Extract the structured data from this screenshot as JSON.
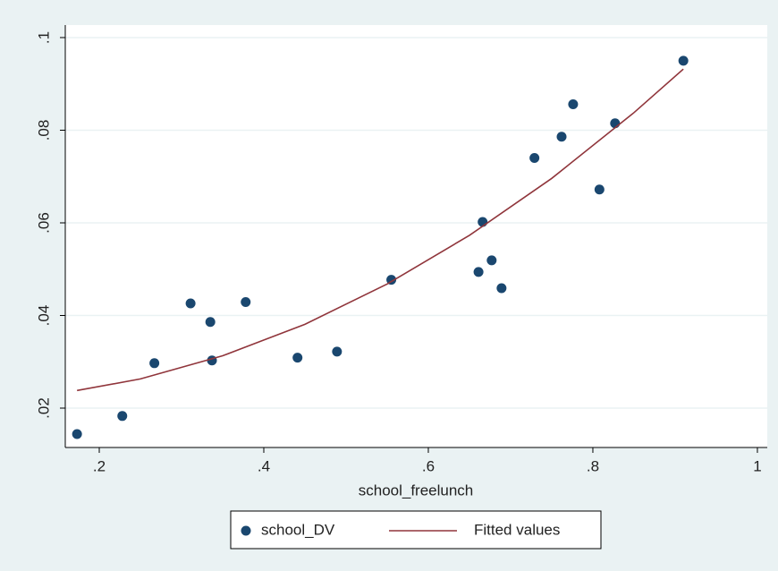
{
  "chart_data": {
    "type": "scatter",
    "x_label": "school_freelunch",
    "xlim": [
      0.1587,
      1.012
    ],
    "ylim": [
      0.0115,
      0.1027
    ],
    "xticks": [
      {
        "value": 0.2,
        "label": ".2"
      },
      {
        "value": 0.4,
        "label": ".4"
      },
      {
        "value": 0.6,
        "label": ".6"
      },
      {
        "value": 0.8,
        "label": ".8"
      },
      1
    ],
    "yticks": [
      {
        "value": 0.02,
        "label": ".02"
      },
      {
        "value": 0.04,
        "label": ".04"
      },
      {
        "value": 0.06,
        "label": ".06"
      },
      {
        "value": 0.08,
        "label": ".08"
      },
      {
        "value": 0.1,
        "label": ".1"
      }
    ],
    "grid": true,
    "legend": "bottom",
    "series": [
      {
        "name": "school_DV",
        "color": "#1a476f",
        "mode": "markers",
        "x": [
          0.173,
          0.228,
          0.267,
          0.311,
          0.335,
          0.337,
          0.378,
          0.441,
          0.489,
          0.555,
          0.661,
          0.666,
          0.677,
          0.689,
          0.729,
          0.762,
          0.776,
          0.808,
          0.827,
          0.91
        ],
        "values": [
          0.0144,
          0.0183,
          0.0297,
          0.0426,
          0.0386,
          0.0303,
          0.0429,
          0.0309,
          0.0322,
          0.0477,
          0.0494,
          0.0602,
          0.0519,
          0.0459,
          0.074,
          0.0786,
          0.0856,
          0.0672,
          0.0815,
          0.095
        ]
      },
      {
        "name": "Fitted values",
        "color": "#90353b",
        "mode": "line",
        "x": [
          0.173,
          0.25,
          0.35,
          0.45,
          0.55,
          0.65,
          0.75,
          0.85,
          0.91
        ],
        "values": [
          0.0238,
          0.0263,
          0.0313,
          0.0381,
          0.0468,
          0.0573,
          0.0696,
          0.0838,
          0.0932
        ]
      }
    ]
  }
}
